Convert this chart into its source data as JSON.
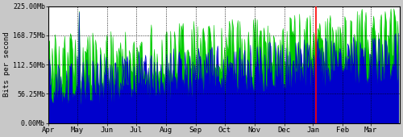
{
  "title": "",
  "xlabel": "",
  "ylabel": "Bits per second",
  "xlim": [
    0,
    365
  ],
  "ylim": [
    0,
    225000000
  ],
  "yticks": [
    0,
    56250000,
    112500000,
    168750000,
    225000000
  ],
  "ytick_labels": [
    "0.00Mb",
    "56.25Mb",
    "112.50Mb",
    "168.75Mb",
    "225.00Mb"
  ],
  "month_ticks": [
    0,
    30,
    61,
    91,
    122,
    153,
    183,
    214,
    245,
    275,
    306,
    335,
    365
  ],
  "month_labels": [
    "Apr",
    "May",
    "Jun",
    "Jul",
    "Aug",
    "Sep",
    "Oct",
    "Nov",
    "Dec",
    "Jan",
    "Feb",
    "Mar",
    ""
  ],
  "bg_color": "#c8c8c8",
  "plot_bg_color": "#ffffff",
  "green_color": "#00cc00",
  "blue_color": "#0000cc",
  "red_line_x": 278,
  "grid_color": "#000000",
  "seed": 7,
  "n_points": 365,
  "spike_day": 32,
  "spike_value_green": 215000000,
  "spike_value_blue": 213000000,
  "base_green_min": 40000000,
  "base_green_max": 175000000,
  "base_blue_min": 30000000,
  "base_blue_max": 160000000,
  "late_trend_boost": 30000000
}
